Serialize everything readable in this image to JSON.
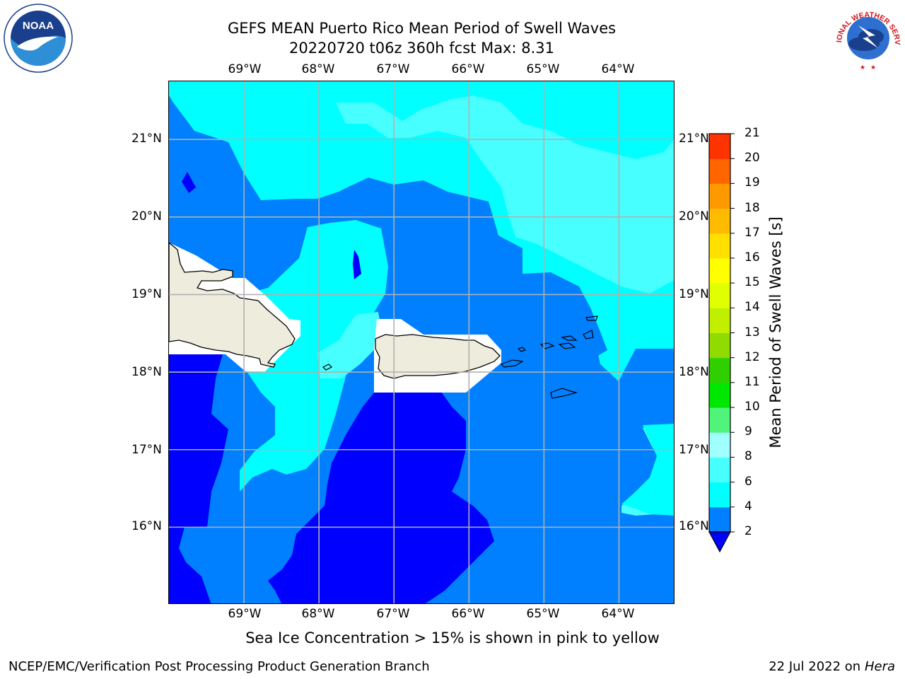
{
  "header": {
    "title_line1": "GEFS MEAN Puerto Rico Mean Period of Swell Waves",
    "title_line2": "20220720 t06z 360h fcst   Max: 8.31"
  },
  "logos": {
    "left": "noaa-logo",
    "left_text": "NOAA",
    "right": "national-weather-service-logo",
    "right_text": "NATIONAL WEATHER SERVICE"
  },
  "map": {
    "longitude_labels": [
      "69°W",
      "68°W",
      "67°W",
      "66°W",
      "65°W",
      "64°W"
    ],
    "latitude_labels": [
      "21°N",
      "20°N",
      "19°N",
      "18°N",
      "17°N",
      "16°N"
    ],
    "lon_range": [
      -70.0,
      -63.25
    ],
    "lat_range": [
      15.0,
      21.75
    ],
    "grid": true,
    "land_color": "#eeecdc",
    "colors": {
      "c2_4": "#0080ff",
      "c4_6": "#00ffff",
      "c6_8": "#48ffff",
      "lt2": "#0000ff"
    }
  },
  "colorbar": {
    "title": "Mean Period of Swell Waves [s]",
    "levels": [
      "2",
      "4",
      "6",
      "8",
      "9",
      "10",
      "11",
      "12",
      "13",
      "14",
      "15",
      "16",
      "17",
      "18",
      "19",
      "20",
      "21"
    ],
    "colors": [
      "#0080ff",
      "#00ffff",
      "#48ffff",
      "#a0ffff",
      "#50f47a",
      "#00e800",
      "#30d000",
      "#90dc00",
      "#c0f000",
      "#e0ff00",
      "#ffff00",
      "#ffe000",
      "#ffbb00",
      "#ff9900",
      "#ff6600",
      "#ff3300"
    ],
    "under_color": "#0000ff",
    "over_color": "#ff0000"
  },
  "notes": {
    "sea_ice": "Sea Ice Concentration > 15% is shown in pink to yellow"
  },
  "footer": {
    "left": "NCEP/EMC/Verification Post Processing Product Generation Branch",
    "date": "22 Jul 2022 on ",
    "machine": "Hera"
  }
}
